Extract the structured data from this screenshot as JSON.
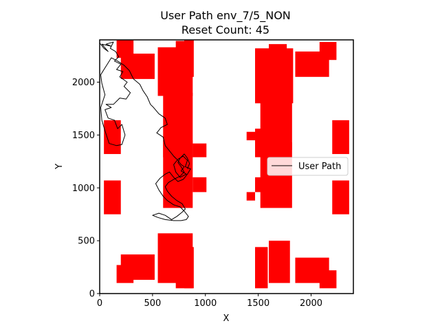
{
  "chart_data": {
    "type": "line",
    "title": "User Path env_7/5_NON",
    "subtitle": "Reset Count: 45",
    "xlabel": "X",
    "ylabel": "Y",
    "xlim": [
      0,
      2400
    ],
    "ylim": [
      0,
      2400
    ],
    "xticks": [
      0,
      500,
      1000,
      1500,
      2000
    ],
    "yticks": [
      0,
      500,
      1000,
      1500,
      2000
    ],
    "grid": false,
    "legend": {
      "placement": "right",
      "entries": [
        "User Path"
      ]
    },
    "obstacle_color": "#ff0000",
    "path_color": "#000000",
    "obstacles": [
      [
        160,
        2230,
        160,
        170
      ],
      [
        200,
        2030,
        320,
        240
      ],
      [
        550,
        1870,
        330,
        460
      ],
      [
        720,
        2200,
        160,
        190
      ],
      [
        800,
        2050,
        90,
        350
      ],
      [
        1470,
        1800,
        360,
        520
      ],
      [
        1600,
        2000,
        170,
        360
      ],
      [
        1850,
        2050,
        320,
        240
      ],
      [
        2080,
        2210,
        160,
        170
      ],
      [
        40,
        1320,
        160,
        320
      ],
      [
        2200,
        1320,
        160,
        320
      ],
      [
        40,
        750,
        160,
        320
      ],
      [
        2200,
        750,
        160,
        320
      ],
      [
        600,
        1290,
        280,
        610
      ],
      [
        880,
        1290,
        130,
        130
      ],
      [
        1390,
        1450,
        80,
        80
      ],
      [
        1470,
        1290,
        150,
        270
      ],
      [
        1520,
        1360,
        300,
        500
      ],
      [
        600,
        810,
        280,
        640
      ],
      [
        880,
        960,
        130,
        140
      ],
      [
        1390,
        880,
        80,
        80
      ],
      [
        1470,
        960,
        150,
        140
      ],
      [
        1520,
        810,
        300,
        620
      ],
      [
        160,
        100,
        160,
        170
      ],
      [
        200,
        130,
        320,
        240
      ],
      [
        550,
        100,
        330,
        470
      ],
      [
        720,
        50,
        160,
        250
      ],
      [
        800,
        50,
        90,
        390
      ],
      [
        1470,
        50,
        120,
        390
      ],
      [
        1600,
        100,
        200,
        400
      ],
      [
        1850,
        100,
        320,
        240
      ],
      [
        2080,
        50,
        160,
        170
      ]
    ],
    "series": [
      {
        "name": "User Path",
        "points": [
          [
            0,
            2370
          ],
          [
            40,
            2320
          ],
          [
            80,
            2290
          ],
          [
            20,
            2360
          ],
          [
            110,
            2340
          ],
          [
            60,
            2360
          ],
          [
            130,
            2380
          ],
          [
            100,
            2320
          ],
          [
            150,
            2290
          ],
          [
            180,
            2240
          ],
          [
            140,
            2200
          ],
          [
            200,
            2170
          ],
          [
            160,
            2120
          ],
          [
            220,
            2100
          ],
          [
            190,
            2050
          ],
          [
            260,
            2000
          ],
          [
            230,
            1960
          ],
          [
            290,
            1900
          ],
          [
            250,
            1840
          ],
          [
            190,
            1850
          ],
          [
            130,
            1790
          ],
          [
            60,
            1790
          ],
          [
            110,
            1760
          ],
          [
            50,
            1740
          ],
          [
            80,
            1660
          ],
          [
            140,
            1640
          ],
          [
            170,
            1560
          ],
          [
            210,
            1600
          ],
          [
            240,
            1500
          ],
          [
            210,
            1410
          ],
          [
            160,
            1400
          ],
          [
            90,
            1420
          ],
          [
            50,
            1540
          ],
          [
            20,
            1640
          ],
          [
            10,
            1760
          ],
          [
            50,
            1880
          ],
          [
            20,
            1990
          ],
          [
            10,
            2070
          ],
          [
            60,
            2150
          ],
          [
            110,
            2230
          ],
          [
            170,
            2200
          ],
          [
            230,
            2160
          ],
          [
            280,
            2110
          ],
          [
            320,
            2030
          ],
          [
            380,
            1980
          ],
          [
            410,
            1920
          ],
          [
            450,
            1860
          ],
          [
            480,
            1790
          ],
          [
            510,
            1760
          ],
          [
            560,
            1700
          ],
          [
            620,
            1660
          ],
          [
            640,
            1600
          ],
          [
            580,
            1570
          ],
          [
            540,
            1520
          ],
          [
            600,
            1480
          ],
          [
            620,
            1400
          ],
          [
            660,
            1350
          ],
          [
            700,
            1300
          ],
          [
            740,
            1260
          ],
          [
            770,
            1220
          ],
          [
            800,
            1200
          ],
          [
            770,
            1160
          ],
          [
            820,
            1130
          ],
          [
            760,
            1100
          ],
          [
            720,
            1150
          ],
          [
            700,
            1220
          ],
          [
            740,
            1270
          ],
          [
            790,
            1300
          ],
          [
            830,
            1260
          ],
          [
            810,
            1200
          ],
          [
            860,
            1180
          ],
          [
            830,
            1130
          ],
          [
            790,
            1080
          ],
          [
            740,
            1060
          ],
          [
            700,
            1100
          ],
          [
            660,
            1150
          ],
          [
            620,
            1130
          ],
          [
            570,
            1090
          ],
          [
            530,
            1040
          ],
          [
            560,
            980
          ],
          [
            600,
            920
          ],
          [
            640,
            880
          ],
          [
            700,
            840
          ],
          [
            760,
            820
          ],
          [
            800,
            780
          ],
          [
            840,
            730
          ],
          [
            820,
            700
          ],
          [
            770,
            690
          ],
          [
            700,
            690
          ],
          [
            620,
            700
          ],
          [
            550,
            720
          ],
          [
            500,
            740
          ],
          [
            560,
            760
          ],
          [
            620,
            740
          ],
          [
            680,
            700
          ],
          [
            730,
            730
          ],
          [
            780,
            770
          ],
          [
            810,
            800
          ],
          [
            780,
            850
          ],
          [
            730,
            880
          ],
          [
            680,
            920
          ],
          [
            640,
            970
          ],
          [
            620,
            1010
          ],
          [
            650,
            1050
          ],
          [
            700,
            1080
          ],
          [
            760,
            1110
          ],
          [
            800,
            1150
          ],
          [
            770,
            1200
          ],
          [
            740,
            1240
          ],
          [
            760,
            1280
          ],
          [
            800,
            1320
          ],
          [
            830,
            1280
          ],
          [
            850,
            1230
          ],
          [
            830,
            1180
          ]
        ]
      }
    ]
  }
}
